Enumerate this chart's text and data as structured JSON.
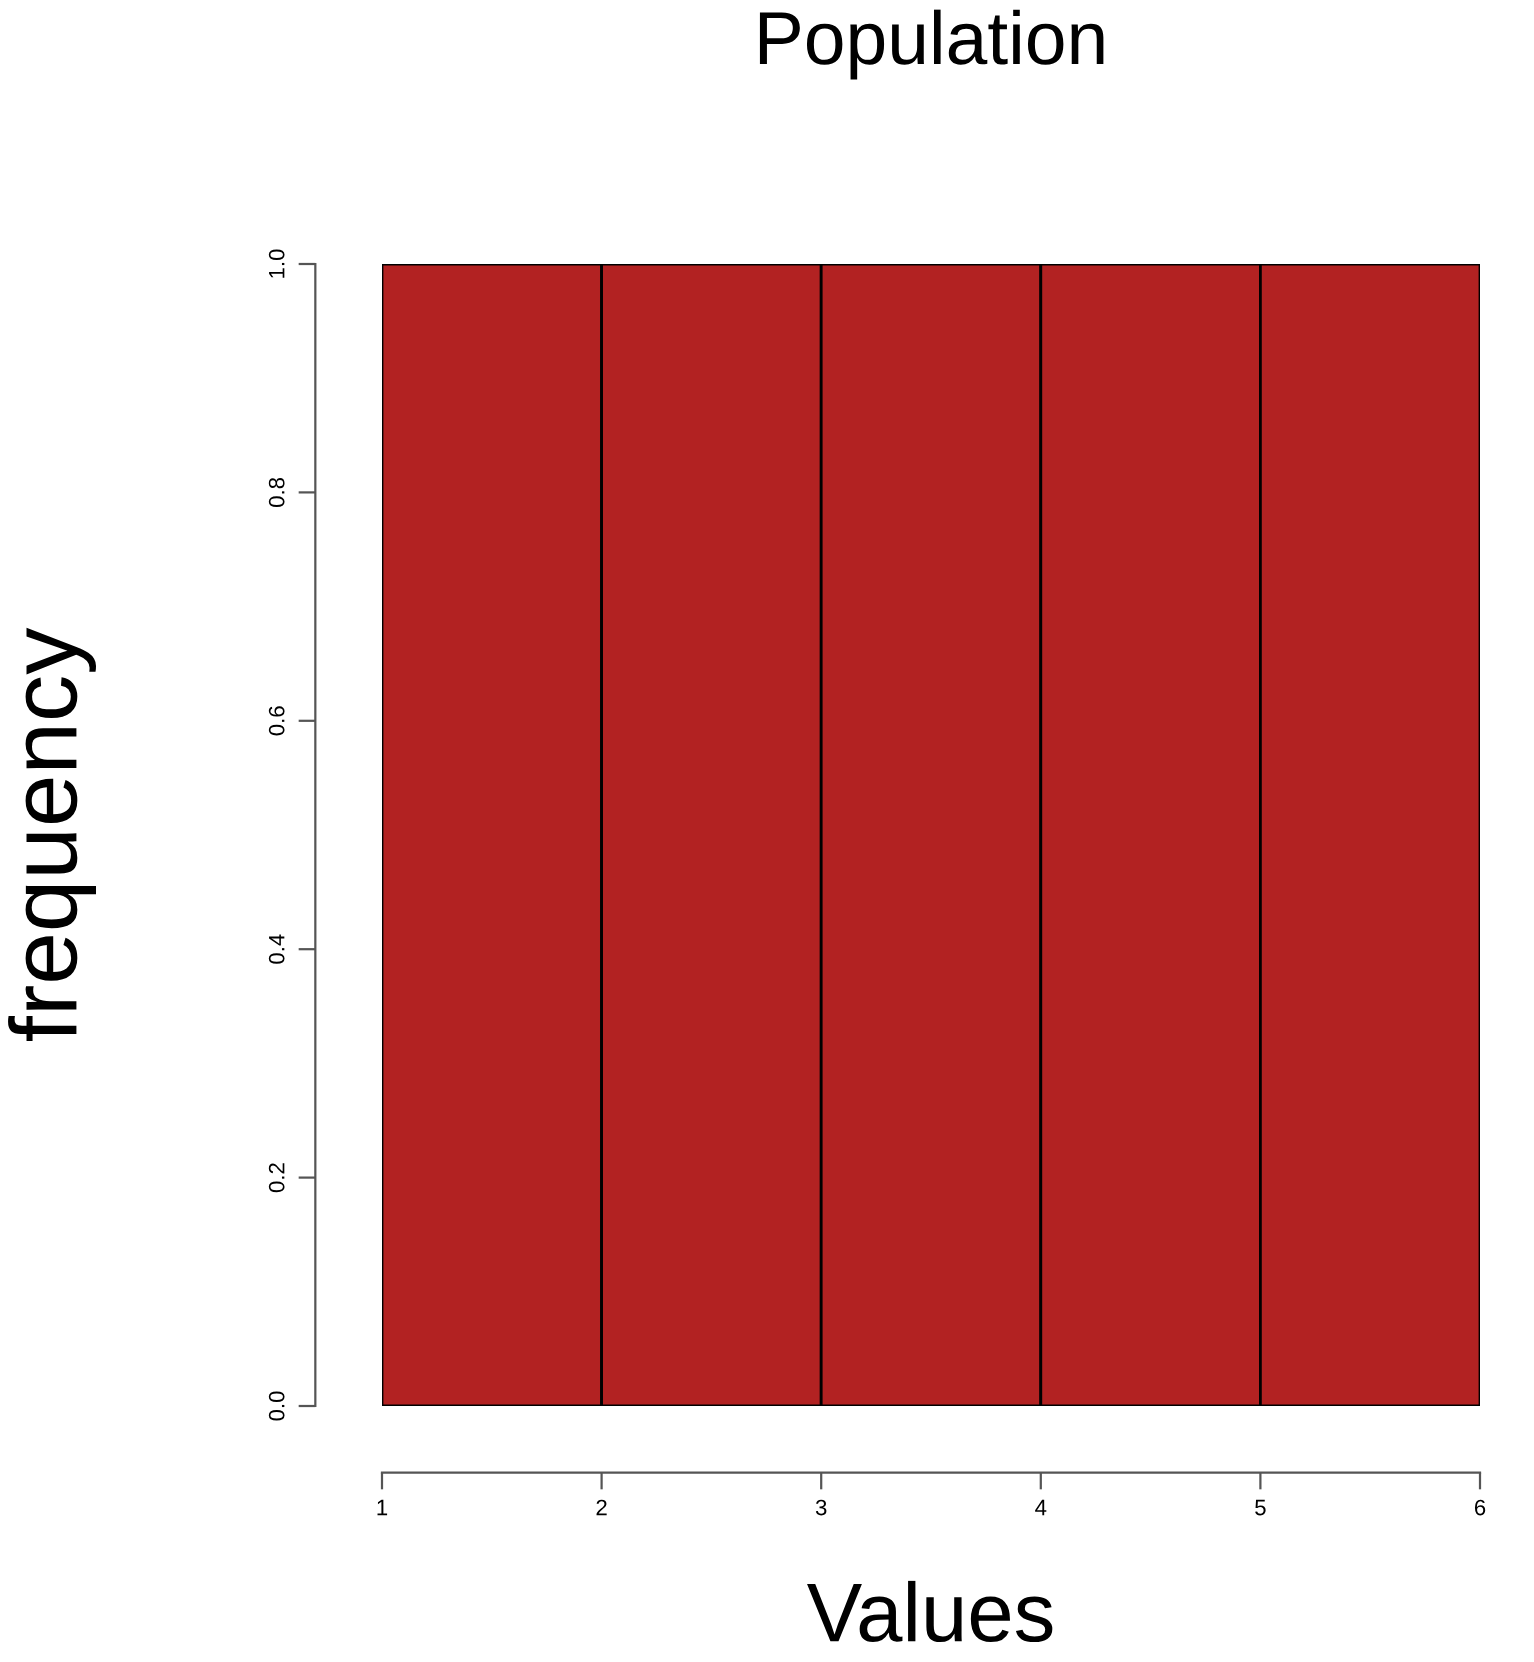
{
  "chart_data": {
    "type": "histogram",
    "title": "Population",
    "xlabel": "Values",
    "ylabel": "frequency",
    "bins": [
      1,
      2,
      3,
      4,
      5,
      6
    ],
    "values": [
      1,
      1,
      1,
      1,
      1
    ],
    "color": "#b22222",
    "xlim": [
      1,
      6
    ],
    "ylim": [
      0,
      1
    ],
    "xticks": [
      1,
      2,
      3,
      4,
      5,
      6
    ],
    "yticks": [
      {
        "value": 0,
        "label": "0.0"
      },
      0.2,
      0.4,
      0.6,
      0.8,
      {
        "value": 1,
        "label": "1.0"
      }
    ]
  }
}
